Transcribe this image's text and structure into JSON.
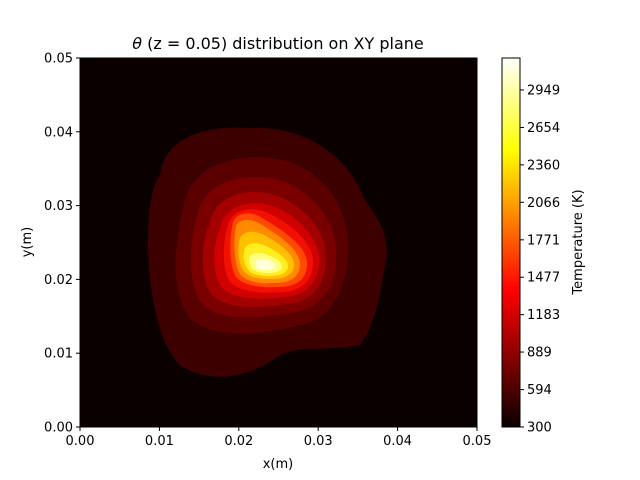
{
  "chart_data": {
    "type": "heatmap",
    "title": "θ (z = 0.05) distribution on XY plane",
    "title_symbol": "θ",
    "title_rest": " (z = 0.05) distribution on XY plane",
    "xlabel": "x(m)",
    "ylabel": "y(m)",
    "xlim": [
      0,
      0.05
    ],
    "ylim": [
      0,
      0.05
    ],
    "xticks": [
      "0.00",
      "0.01",
      "0.02",
      "0.03",
      "0.04",
      "0.05"
    ],
    "yticks": [
      "0.00",
      "0.01",
      "0.02",
      "0.03",
      "0.04",
      "0.05"
    ],
    "colormap": "hot",
    "colorbar": {
      "label": "Temperature (K)",
      "min": 300,
      "max": 3200,
      "ticks": [
        "300",
        "594",
        "889",
        "1183",
        "1477",
        "1771",
        "2066",
        "2360",
        "2654",
        "2949"
      ]
    },
    "peak": {
      "x": 0.0225,
      "y": 0.0215,
      "value": 3200
    },
    "background_value": 300
  },
  "colors": {
    "black": "#000000",
    "dark_red": "#5a0000",
    "red": "#ff0000",
    "orange": "#ff8c00",
    "yellow": "#ffff00",
    "white": "#ffffff"
  }
}
